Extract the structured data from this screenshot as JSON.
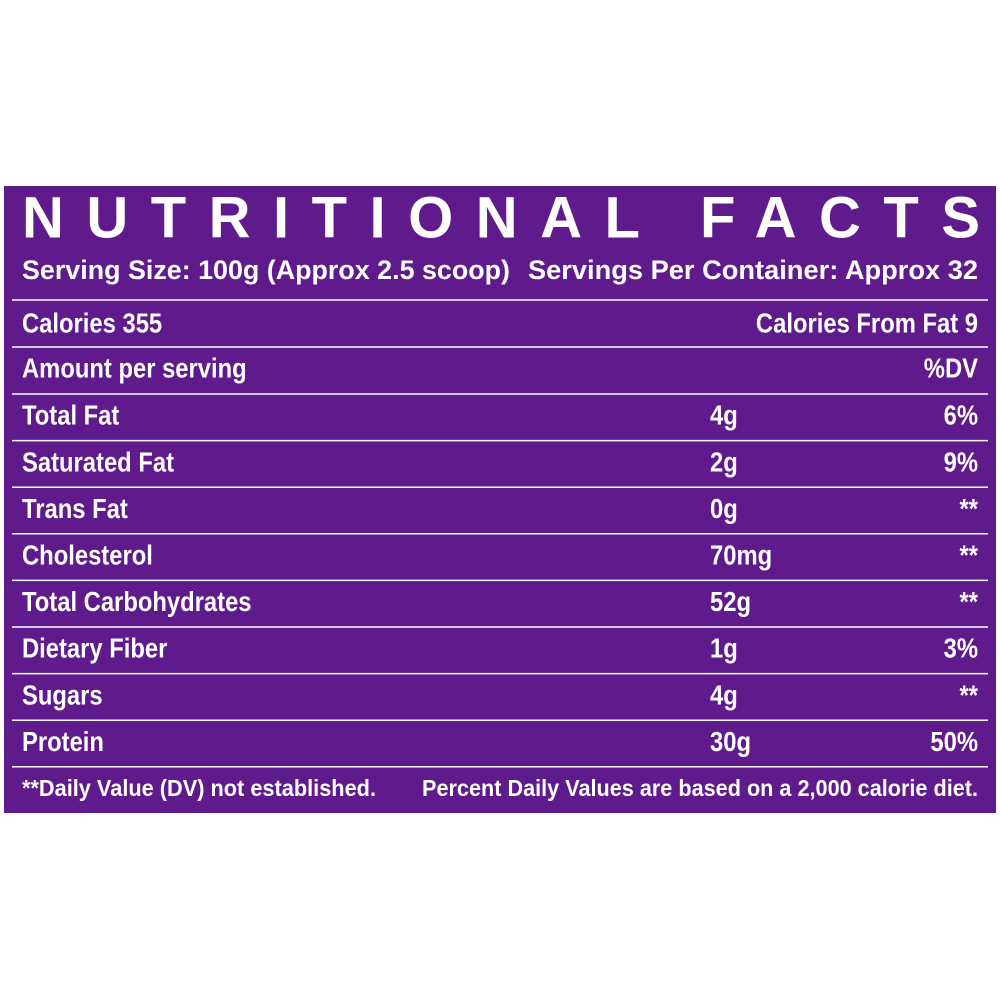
{
  "title": "NUTRITIONAL FACTS",
  "serving_size": "Serving Size: 100g (Approx 2.5 scoop)",
  "servings_per_container": "Servings Per Container: Approx 32",
  "calories": "Calories 355",
  "calories_from_fat": "Calories From Fat 9",
  "header": {
    "label": "Amount per serving",
    "dv": "%DV"
  },
  "rows": [
    [
      "Total Fat",
      "4g",
      "6%"
    ],
    [
      "Saturated Fat",
      "2g",
      "9%"
    ],
    [
      "Trans Fat",
      "0g",
      "**"
    ],
    [
      "Cholesterol",
      "70mg",
      "**"
    ],
    [
      "Total Carbohydrates",
      "52g",
      "**"
    ],
    [
      "Dietary Fiber",
      "1g",
      "3%"
    ],
    [
      "Sugars",
      "4g",
      "**"
    ],
    [
      "Protein",
      "30g",
      "50%"
    ]
  ],
  "footnotes": [
    "**Daily Value (DV) not established.",
    "Percent Daily Values are based on a 2,000 calorie diet."
  ]
}
